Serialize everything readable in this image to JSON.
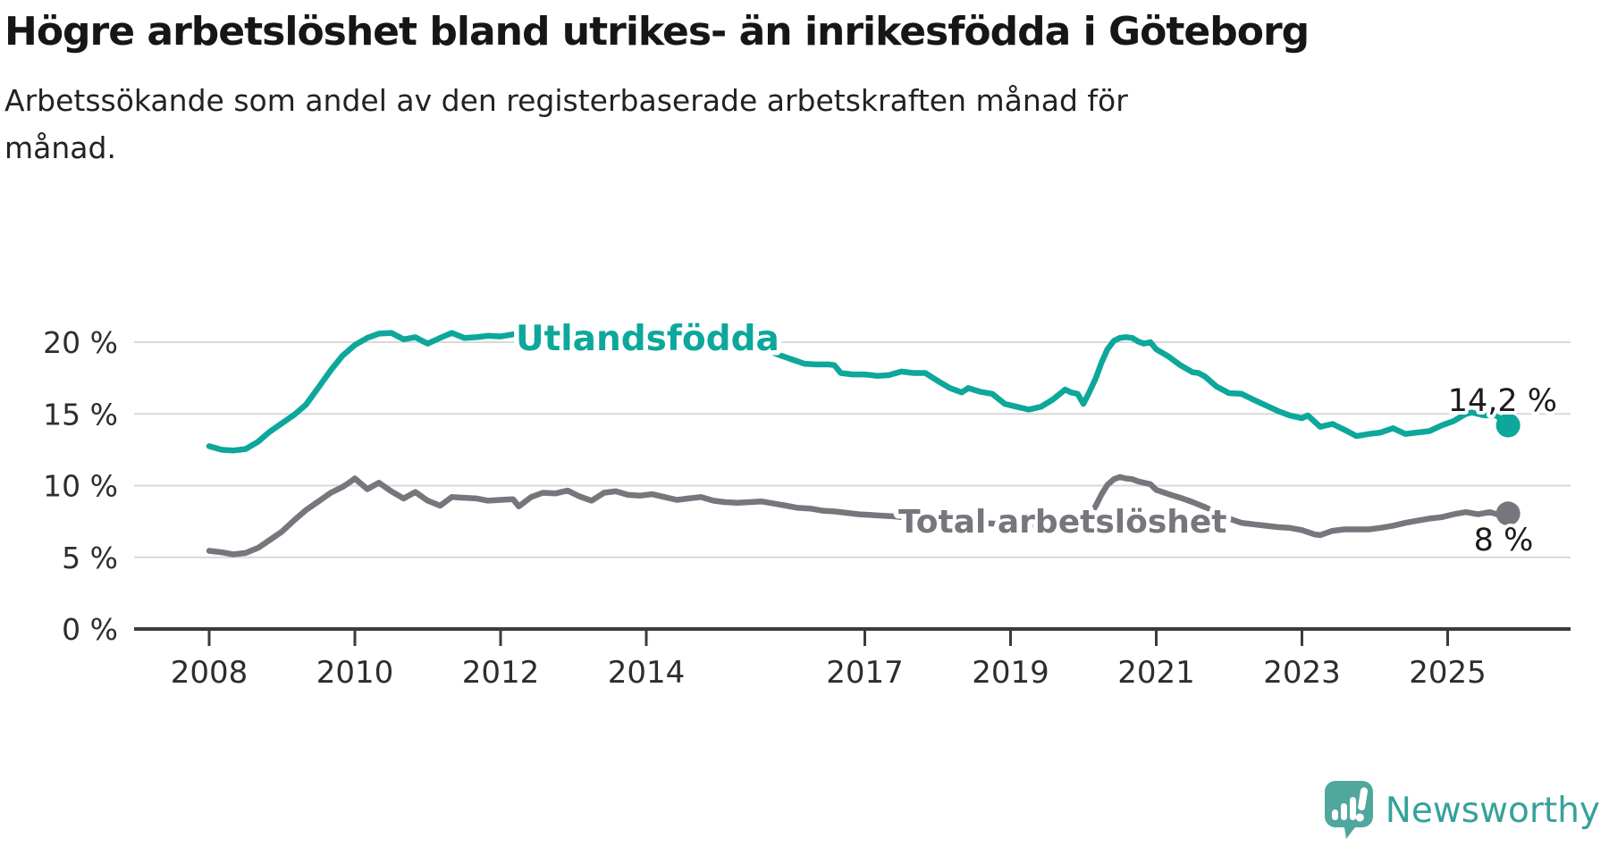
{
  "header": {
    "title": "Högre arbetslöshet bland utrikes- än inrikesfödda i Göteborg",
    "subtitle": "Arbetssökande som andel av den registerbaserade arbetskraften månad för månad."
  },
  "footer": {
    "brand": "Newsworthy",
    "brand_color": "#35a29a",
    "icon": "speech-bubble-bar-chart-icon"
  },
  "colors": {
    "teal_line": "#0da79b",
    "gray_line": "#76767c",
    "gridline": "#d9d9d9",
    "axis": "#3b3b3b",
    "axis_text": "#2d2d2d",
    "annotation_text": "#1b1b1b"
  },
  "chart_data": {
    "type": "line",
    "title": "Högre arbetslöshet bland utrikes- än inrikesfödda i Göteborg",
    "subtitle": "Arbetssökande som andel av den registerbaserade arbetskraften månad för månad.",
    "x_axis": {
      "tick_years": [
        2008,
        2010,
        2012,
        2014,
        2017,
        2019,
        2021,
        2023,
        2025
      ],
      "range": [
        2008,
        2025.83
      ]
    },
    "y_axis": {
      "tick_values": [
        0,
        5,
        10,
        15,
        20
      ],
      "tick_labels": [
        "0 %",
        "5 %",
        "10 %",
        "15 %",
        "20 %"
      ],
      "range": [
        0,
        22
      ],
      "grid": true
    },
    "legend_position": "inline-labels-on-lines",
    "series": [
      {
        "id": "utlandsfodda",
        "name": "Utlandsfödda",
        "color": "#0da79b",
        "end_label": "14,2 %",
        "end_value": 14.2,
        "points": [
          [
            2008.0,
            12.75
          ],
          [
            2008.17,
            12.5
          ],
          [
            2008.33,
            12.45
          ],
          [
            2008.5,
            12.55
          ],
          [
            2008.67,
            13.05
          ],
          [
            2008.83,
            13.75
          ],
          [
            2009.0,
            14.35
          ],
          [
            2009.17,
            14.95
          ],
          [
            2009.33,
            15.65
          ],
          [
            2009.5,
            16.85
          ],
          [
            2009.67,
            18.05
          ],
          [
            2009.83,
            19.05
          ],
          [
            2010.0,
            19.8
          ],
          [
            2010.17,
            20.3
          ],
          [
            2010.33,
            20.6
          ],
          [
            2010.5,
            20.65
          ],
          [
            2010.67,
            20.2
          ],
          [
            2010.83,
            20.35
          ],
          [
            2010.92,
            20.1
          ],
          [
            2011.0,
            19.9
          ],
          [
            2011.17,
            20.3
          ],
          [
            2011.33,
            20.65
          ],
          [
            2011.5,
            20.3
          ],
          [
            2011.67,
            20.35
          ],
          [
            2011.83,
            20.45
          ],
          [
            2012.0,
            20.4
          ],
          [
            2012.17,
            20.55
          ],
          [
            2012.33,
            20.45
          ],
          [
            2012.5,
            20.35
          ],
          [
            2012.67,
            20.4
          ],
          [
            2012.83,
            20.5
          ],
          [
            2013.0,
            20.6
          ],
          [
            2013.17,
            20.65
          ],
          [
            2013.33,
            20.75
          ],
          [
            2013.5,
            20.8
          ],
          [
            2013.67,
            20.6
          ],
          [
            2013.83,
            20.35
          ],
          [
            2014.0,
            20.1
          ],
          [
            2014.17,
            19.85
          ],
          [
            2014.33,
            19.7
          ],
          [
            2014.5,
            19.85
          ],
          [
            2014.67,
            19.9
          ],
          [
            2014.83,
            19.85
          ],
          [
            2015.0,
            19.8
          ],
          [
            2015.17,
            19.7
          ],
          [
            2015.33,
            19.6
          ],
          [
            2015.5,
            19.5
          ],
          [
            2015.67,
            19.4
          ],
          [
            2015.83,
            19.1
          ],
          [
            2016.0,
            18.8
          ],
          [
            2016.17,
            18.5
          ],
          [
            2016.33,
            18.45
          ],
          [
            2016.5,
            18.45
          ],
          [
            2016.58,
            18.4
          ],
          [
            2016.67,
            17.85
          ],
          [
            2016.83,
            17.75
          ],
          [
            2017.0,
            17.75
          ],
          [
            2017.17,
            17.65
          ],
          [
            2017.33,
            17.7
          ],
          [
            2017.5,
            17.95
          ],
          [
            2017.67,
            17.85
          ],
          [
            2017.83,
            17.85
          ],
          [
            2018.0,
            17.3
          ],
          [
            2018.17,
            16.8
          ],
          [
            2018.33,
            16.5
          ],
          [
            2018.42,
            16.8
          ],
          [
            2018.58,
            16.55
          ],
          [
            2018.75,
            16.4
          ],
          [
            2018.92,
            15.7
          ],
          [
            2019.08,
            15.5
          ],
          [
            2019.25,
            15.3
          ],
          [
            2019.42,
            15.5
          ],
          [
            2019.58,
            16.0
          ],
          [
            2019.75,
            16.7
          ],
          [
            2019.83,
            16.5
          ],
          [
            2019.92,
            16.4
          ],
          [
            2020.0,
            15.7
          ],
          [
            2020.08,
            16.5
          ],
          [
            2020.17,
            17.5
          ],
          [
            2020.25,
            18.6
          ],
          [
            2020.33,
            19.5
          ],
          [
            2020.42,
            20.1
          ],
          [
            2020.5,
            20.3
          ],
          [
            2020.58,
            20.35
          ],
          [
            2020.67,
            20.3
          ],
          [
            2020.75,
            20.05
          ],
          [
            2020.83,
            19.9
          ],
          [
            2020.92,
            20.0
          ],
          [
            2021.0,
            19.5
          ],
          [
            2021.17,
            19.0
          ],
          [
            2021.33,
            18.4
          ],
          [
            2021.5,
            17.9
          ],
          [
            2021.58,
            17.85
          ],
          [
            2021.67,
            17.6
          ],
          [
            2021.83,
            16.9
          ],
          [
            2022.0,
            16.45
          ],
          [
            2022.17,
            16.4
          ],
          [
            2022.33,
            16.0
          ],
          [
            2022.5,
            15.6
          ],
          [
            2022.67,
            15.2
          ],
          [
            2022.83,
            14.9
          ],
          [
            2023.0,
            14.7
          ],
          [
            2023.08,
            14.9
          ],
          [
            2023.25,
            14.1
          ],
          [
            2023.42,
            14.3
          ],
          [
            2023.58,
            13.9
          ],
          [
            2023.75,
            13.45
          ],
          [
            2023.92,
            13.6
          ],
          [
            2024.08,
            13.7
          ],
          [
            2024.25,
            14.0
          ],
          [
            2024.42,
            13.6
          ],
          [
            2024.58,
            13.7
          ],
          [
            2024.75,
            13.8
          ],
          [
            2024.92,
            14.2
          ],
          [
            2025.08,
            14.5
          ],
          [
            2025.25,
            15.0
          ],
          [
            2025.33,
            15.1
          ],
          [
            2025.5,
            14.9
          ],
          [
            2025.67,
            14.9
          ],
          [
            2025.75,
            14.5
          ],
          [
            2025.83,
            14.2
          ]
        ]
      },
      {
        "id": "total-arbetsloshet",
        "name": "Total arbetslöshet",
        "color": "#76767c",
        "end_label": "8 %",
        "end_value": 8.0,
        "points": [
          [
            2008.0,
            5.45
          ],
          [
            2008.17,
            5.35
          ],
          [
            2008.33,
            5.2
          ],
          [
            2008.5,
            5.3
          ],
          [
            2008.67,
            5.65
          ],
          [
            2008.83,
            6.2
          ],
          [
            2009.0,
            6.8
          ],
          [
            2009.17,
            7.6
          ],
          [
            2009.33,
            8.3
          ],
          [
            2009.5,
            8.9
          ],
          [
            2009.67,
            9.5
          ],
          [
            2009.83,
            9.9
          ],
          [
            2009.92,
            10.2
          ],
          [
            2010.0,
            10.5
          ],
          [
            2010.17,
            9.75
          ],
          [
            2010.33,
            10.2
          ],
          [
            2010.5,
            9.6
          ],
          [
            2010.67,
            9.1
          ],
          [
            2010.83,
            9.55
          ],
          [
            2011.0,
            8.95
          ],
          [
            2011.17,
            8.6
          ],
          [
            2011.33,
            9.2
          ],
          [
            2011.5,
            9.15
          ],
          [
            2011.67,
            9.1
          ],
          [
            2011.83,
            8.95
          ],
          [
            2012.0,
            9.0
          ],
          [
            2012.17,
            9.05
          ],
          [
            2012.25,
            8.55
          ],
          [
            2012.42,
            9.2
          ],
          [
            2012.58,
            9.5
          ],
          [
            2012.75,
            9.45
          ],
          [
            2012.92,
            9.65
          ],
          [
            2013.08,
            9.25
          ],
          [
            2013.25,
            8.95
          ],
          [
            2013.42,
            9.5
          ],
          [
            2013.58,
            9.6
          ],
          [
            2013.75,
            9.35
          ],
          [
            2013.92,
            9.3
          ],
          [
            2014.08,
            9.4
          ],
          [
            2014.25,
            9.2
          ],
          [
            2014.42,
            9.0
          ],
          [
            2014.58,
            9.1
          ],
          [
            2014.75,
            9.2
          ],
          [
            2014.92,
            8.95
          ],
          [
            2015.08,
            8.85
          ],
          [
            2015.25,
            8.8
          ],
          [
            2015.42,
            8.85
          ],
          [
            2015.58,
            8.9
          ],
          [
            2015.75,
            8.75
          ],
          [
            2015.92,
            8.6
          ],
          [
            2016.08,
            8.45
          ],
          [
            2016.25,
            8.4
          ],
          [
            2016.42,
            8.25
          ],
          [
            2016.58,
            8.2
          ],
          [
            2016.75,
            8.1
          ],
          [
            2016.92,
            8.0
          ],
          [
            2017.08,
            7.95
          ],
          [
            2017.25,
            7.9
          ],
          [
            2017.42,
            7.85
          ],
          [
            2017.58,
            7.75
          ],
          [
            2017.75,
            7.7
          ],
          [
            2017.92,
            7.6
          ],
          [
            2018.08,
            7.5
          ],
          [
            2018.25,
            7.45
          ],
          [
            2018.42,
            7.4
          ],
          [
            2018.58,
            7.4
          ],
          [
            2018.75,
            7.35
          ],
          [
            2018.92,
            7.3
          ],
          [
            2019.08,
            7.3
          ],
          [
            2019.25,
            7.25
          ],
          [
            2019.42,
            7.3
          ],
          [
            2019.58,
            7.3
          ],
          [
            2019.75,
            7.35
          ],
          [
            2019.92,
            7.3
          ],
          [
            2020.0,
            7.4
          ],
          [
            2020.08,
            7.8
          ],
          [
            2020.17,
            8.6
          ],
          [
            2020.25,
            9.4
          ],
          [
            2020.33,
            10.05
          ],
          [
            2020.42,
            10.45
          ],
          [
            2020.5,
            10.6
          ],
          [
            2020.58,
            10.5
          ],
          [
            2020.67,
            10.45
          ],
          [
            2020.75,
            10.3
          ],
          [
            2020.83,
            10.2
          ],
          [
            2020.92,
            10.1
          ],
          [
            2021.0,
            9.7
          ],
          [
            2021.17,
            9.4
          ],
          [
            2021.33,
            9.15
          ],
          [
            2021.5,
            8.85
          ],
          [
            2021.67,
            8.5
          ],
          [
            2021.83,
            8.1
          ],
          [
            2022.0,
            7.7
          ],
          [
            2022.17,
            7.4
          ],
          [
            2022.33,
            7.3
          ],
          [
            2022.5,
            7.2
          ],
          [
            2022.67,
            7.1
          ],
          [
            2022.83,
            7.05
          ],
          [
            2023.0,
            6.9
          ],
          [
            2023.17,
            6.6
          ],
          [
            2023.25,
            6.55
          ],
          [
            2023.42,
            6.85
          ],
          [
            2023.58,
            6.95
          ],
          [
            2023.75,
            6.95
          ],
          [
            2023.92,
            6.95
          ],
          [
            2024.08,
            7.05
          ],
          [
            2024.25,
            7.2
          ],
          [
            2024.42,
            7.4
          ],
          [
            2024.58,
            7.55
          ],
          [
            2024.75,
            7.7
          ],
          [
            2024.92,
            7.8
          ],
          [
            2025.08,
            8.0
          ],
          [
            2025.25,
            8.15
          ],
          [
            2025.42,
            8.0
          ],
          [
            2025.58,
            8.15
          ],
          [
            2025.75,
            7.9
          ],
          [
            2025.83,
            8.05
          ]
        ]
      }
    ]
  }
}
